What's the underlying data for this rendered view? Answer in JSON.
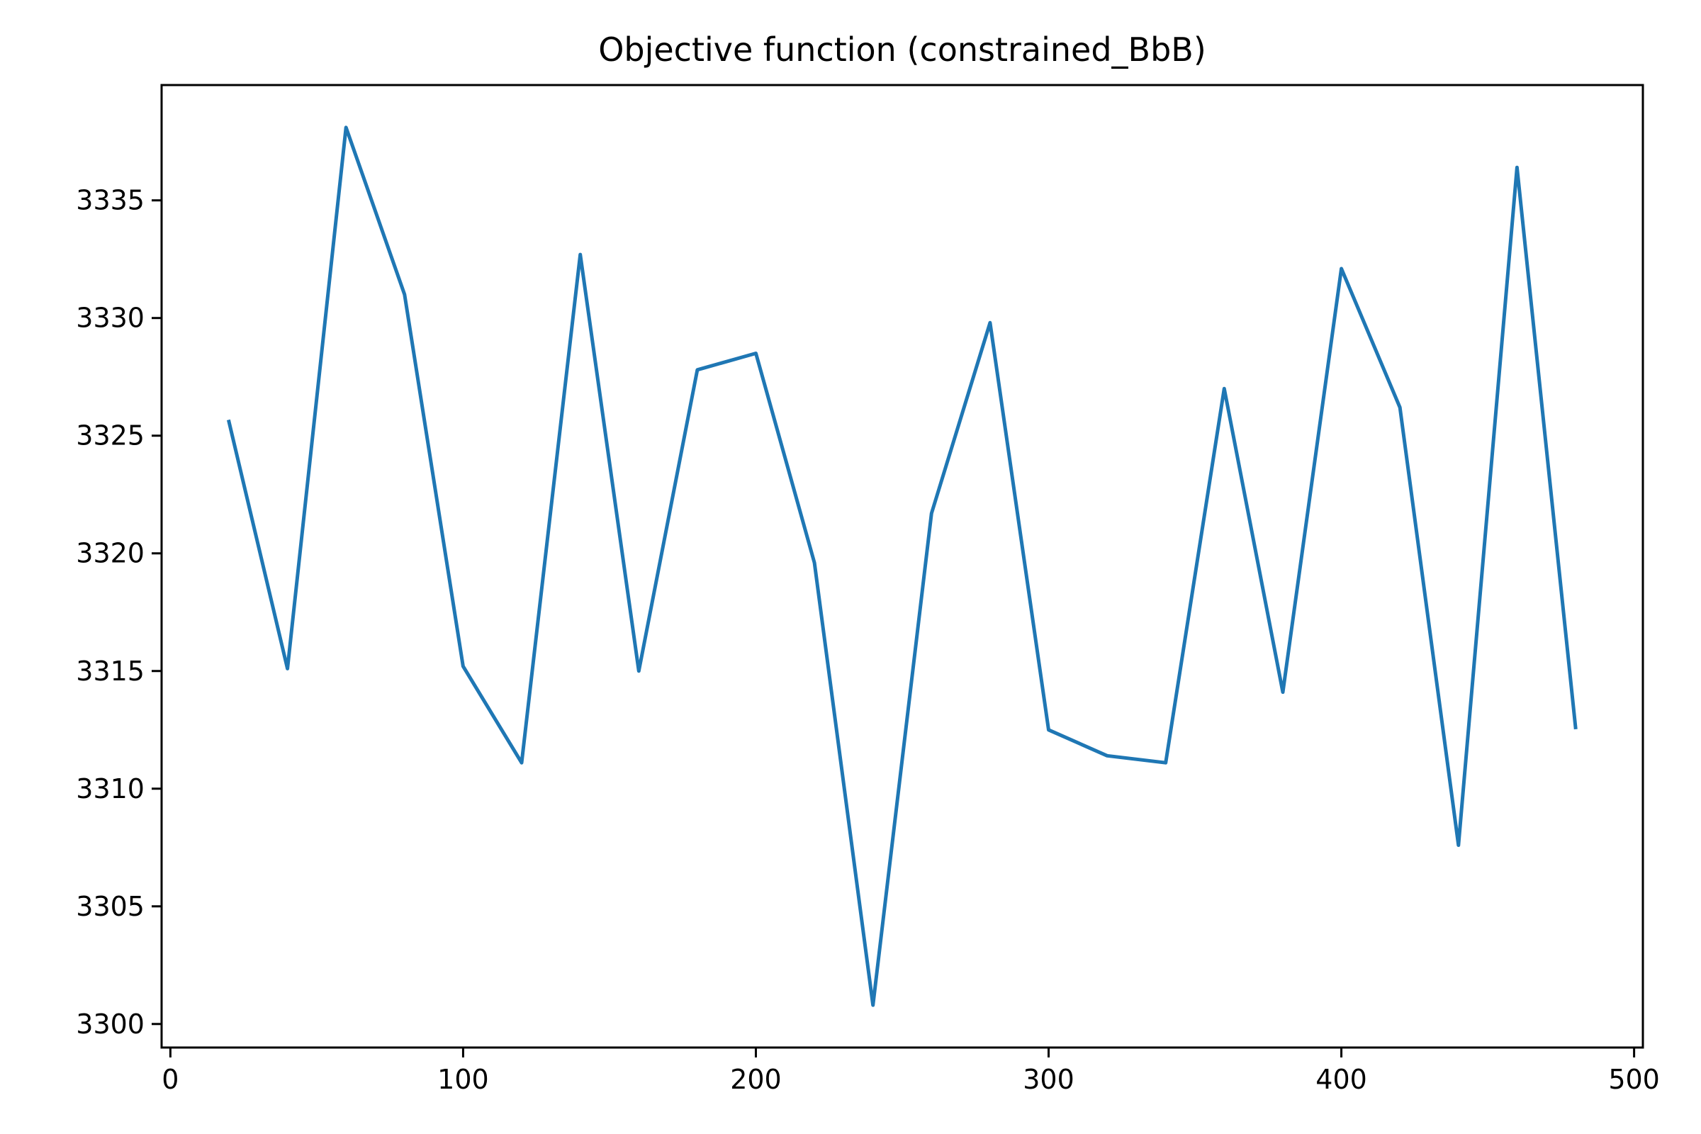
{
  "chart_data": {
    "type": "line",
    "title": "Objective function (constrained_BbB)",
    "xlabel": "",
    "ylabel": "",
    "xlim": [
      -3,
      503
    ],
    "ylim": [
      3299.0,
      3339.9
    ],
    "xticks": [
      0,
      100,
      200,
      300,
      400,
      500
    ],
    "yticks": [
      3300,
      3305,
      3310,
      3315,
      3320,
      3325,
      3330,
      3335
    ],
    "grid": false,
    "series": [
      {
        "color": "#1f77b4",
        "x": [
          20,
          40,
          60,
          80,
          100,
          120,
          140,
          160,
          180,
          200,
          220,
          240,
          260,
          280,
          300,
          320,
          340,
          360,
          380,
          400,
          420,
          440,
          460,
          480
        ],
        "y": [
          3325.6,
          3315.1,
          3338.1,
          3331.0,
          3315.2,
          3311.1,
          3332.7,
          3315.0,
          3327.8,
          3328.5,
          3319.6,
          3300.8,
          3321.7,
          3329.8,
          3312.5,
          3311.4,
          3311.1,
          3327.0,
          3314.1,
          3332.1,
          3326.2,
          3307.6,
          3336.4,
          3312.6
        ]
      }
    ]
  }
}
